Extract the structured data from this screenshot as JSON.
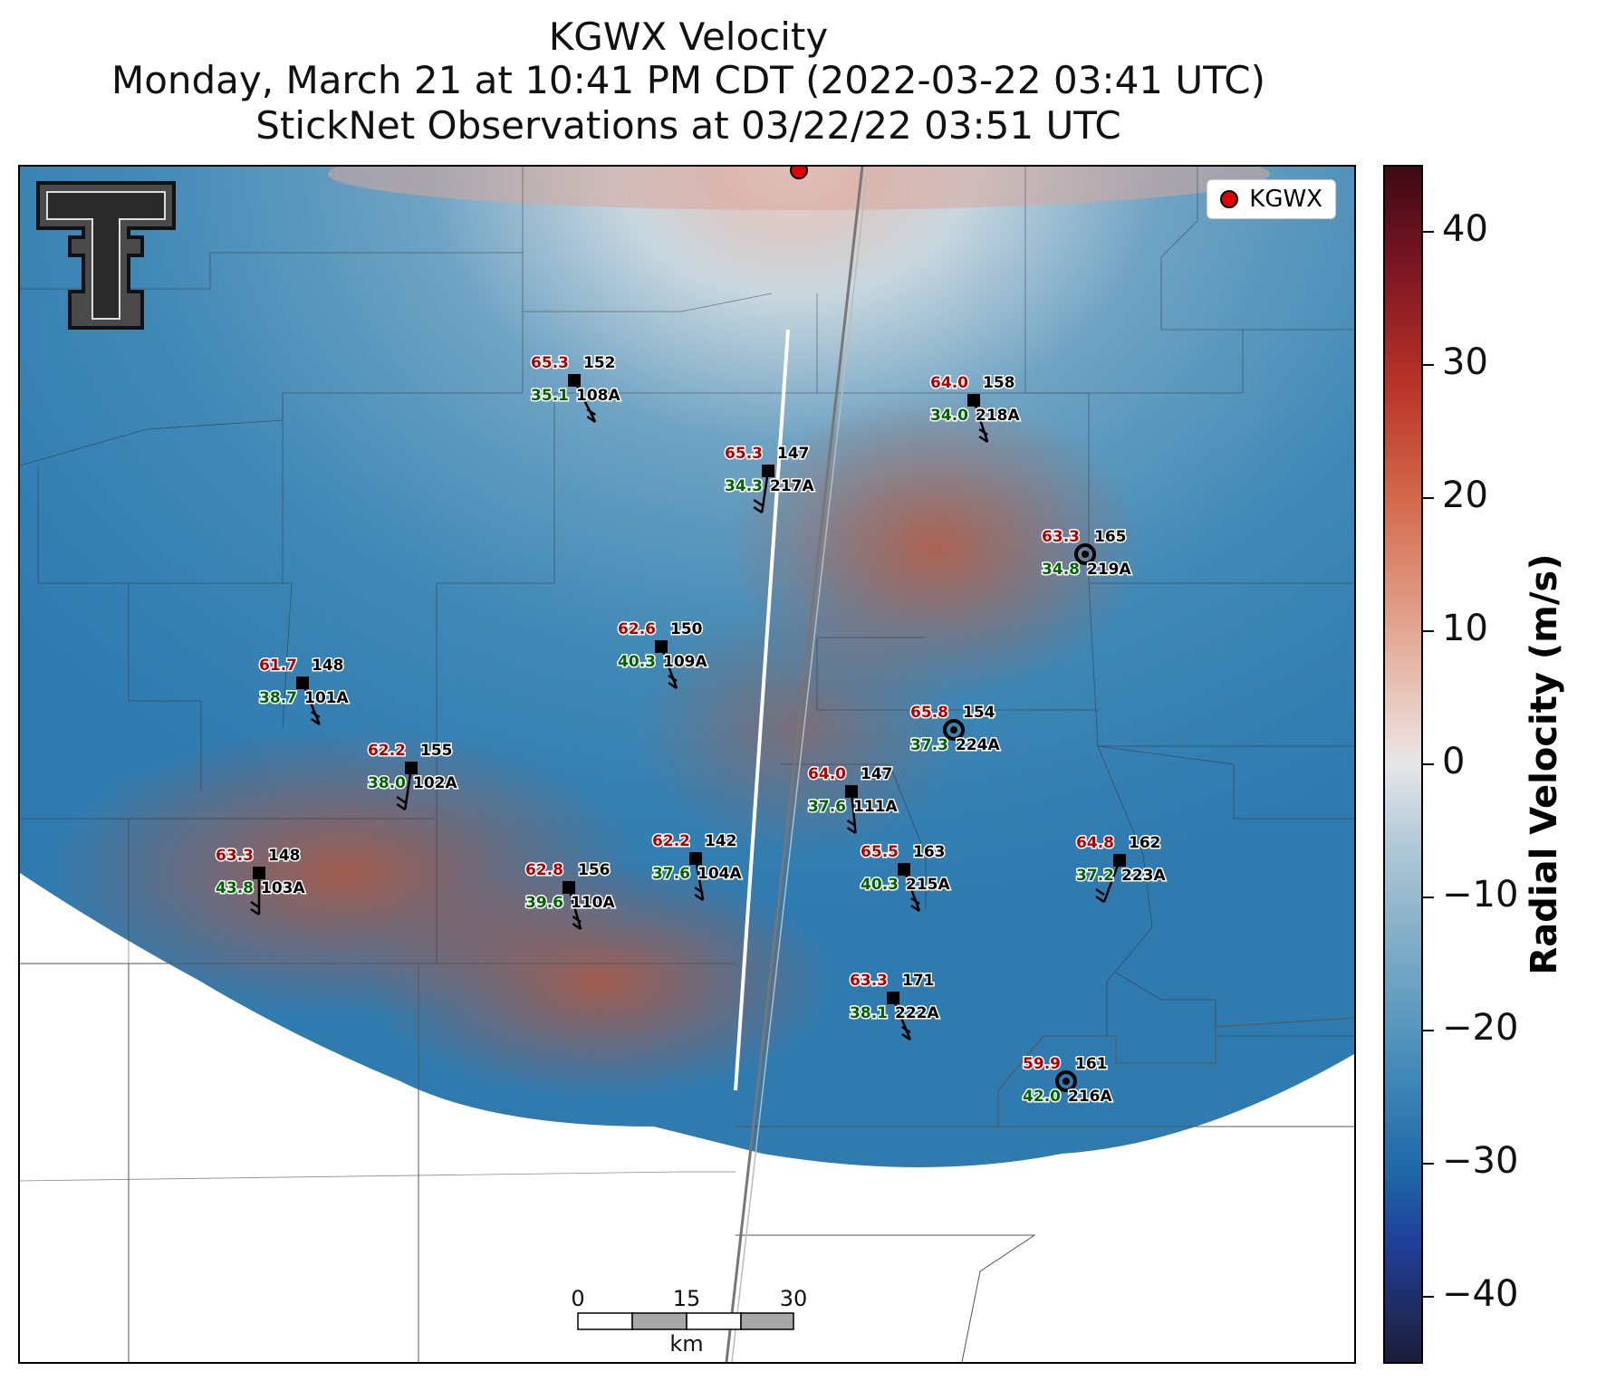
{
  "title": {
    "line1": "KGWX Velocity",
    "line2": "Monday, March 21 at 10:41 PM CDT (2022-03-22 03:41 UTC)",
    "line3": "StickNet Observations at 03/22/22 03:51 UTC"
  },
  "legend": {
    "label": "KGWX",
    "marker_color": "#e00000"
  },
  "colorbar": {
    "label": "Radial Velocity (m/s)",
    "range": [
      -45,
      45
    ],
    "ticks": [
      "40",
      "30",
      "20",
      "10",
      "0",
      "−10",
      "−20",
      "−30",
      "−40"
    ]
  },
  "scale_bar": {
    "labels": [
      "0",
      "15",
      "30"
    ],
    "unit": "km"
  },
  "logo": {
    "icon": "texas-tech-double-t-logo"
  },
  "colors": {
    "temp": "#b00000",
    "dewpoint": "#006400",
    "id": "#000000"
  },
  "stations": [
    {
      "id": "108A",
      "temp": "65.3",
      "pressure": "152",
      "dewpoint": "35.1",
      "marker": "square"
    },
    {
      "id": "218A",
      "temp": "64.0",
      "pressure": "158",
      "dewpoint": "34.0",
      "marker": "square"
    },
    {
      "id": "217A",
      "temp": "65.3",
      "pressure": "147",
      "dewpoint": "34.3",
      "marker": "square"
    },
    {
      "id": "219A",
      "temp": "63.3",
      "pressure": "165",
      "dewpoint": "34.8",
      "marker": "circle"
    },
    {
      "id": "101A",
      "temp": "61.7",
      "pressure": "148",
      "dewpoint": "38.7",
      "marker": "square"
    },
    {
      "id": "109A",
      "temp": "62.6",
      "pressure": "150",
      "dewpoint": "40.3",
      "marker": "square"
    },
    {
      "id": "224A",
      "temp": "65.8",
      "pressure": "154",
      "dewpoint": "37.3",
      "marker": "circle"
    },
    {
      "id": "102A",
      "temp": "62.2",
      "pressure": "155",
      "dewpoint": "38.0",
      "marker": "square"
    },
    {
      "id": "111A",
      "temp": "64.0",
      "pressure": "147",
      "dewpoint": "37.6",
      "marker": "square"
    },
    {
      "id": "103A",
      "temp": "63.3",
      "pressure": "148",
      "dewpoint": "43.8",
      "marker": "square"
    },
    {
      "id": "104A",
      "temp": "62.2",
      "pressure": "142",
      "dewpoint": "37.6",
      "marker": "square"
    },
    {
      "id": "110A",
      "temp": "62.8",
      "pressure": "156",
      "dewpoint": "39.6",
      "marker": "square"
    },
    {
      "id": "215A",
      "temp": "65.5",
      "pressure": "163",
      "dewpoint": "40.3",
      "marker": "square"
    },
    {
      "id": "223A",
      "temp": "64.8",
      "pressure": "162",
      "dewpoint": "37.2",
      "marker": "square"
    },
    {
      "id": "222A",
      "temp": "63.3",
      "pressure": "171",
      "dewpoint": "38.1",
      "marker": "square"
    },
    {
      "id": "216A",
      "temp": "59.9",
      "pressure": "161",
      "dewpoint": "42.0",
      "marker": "circle"
    }
  ]
}
